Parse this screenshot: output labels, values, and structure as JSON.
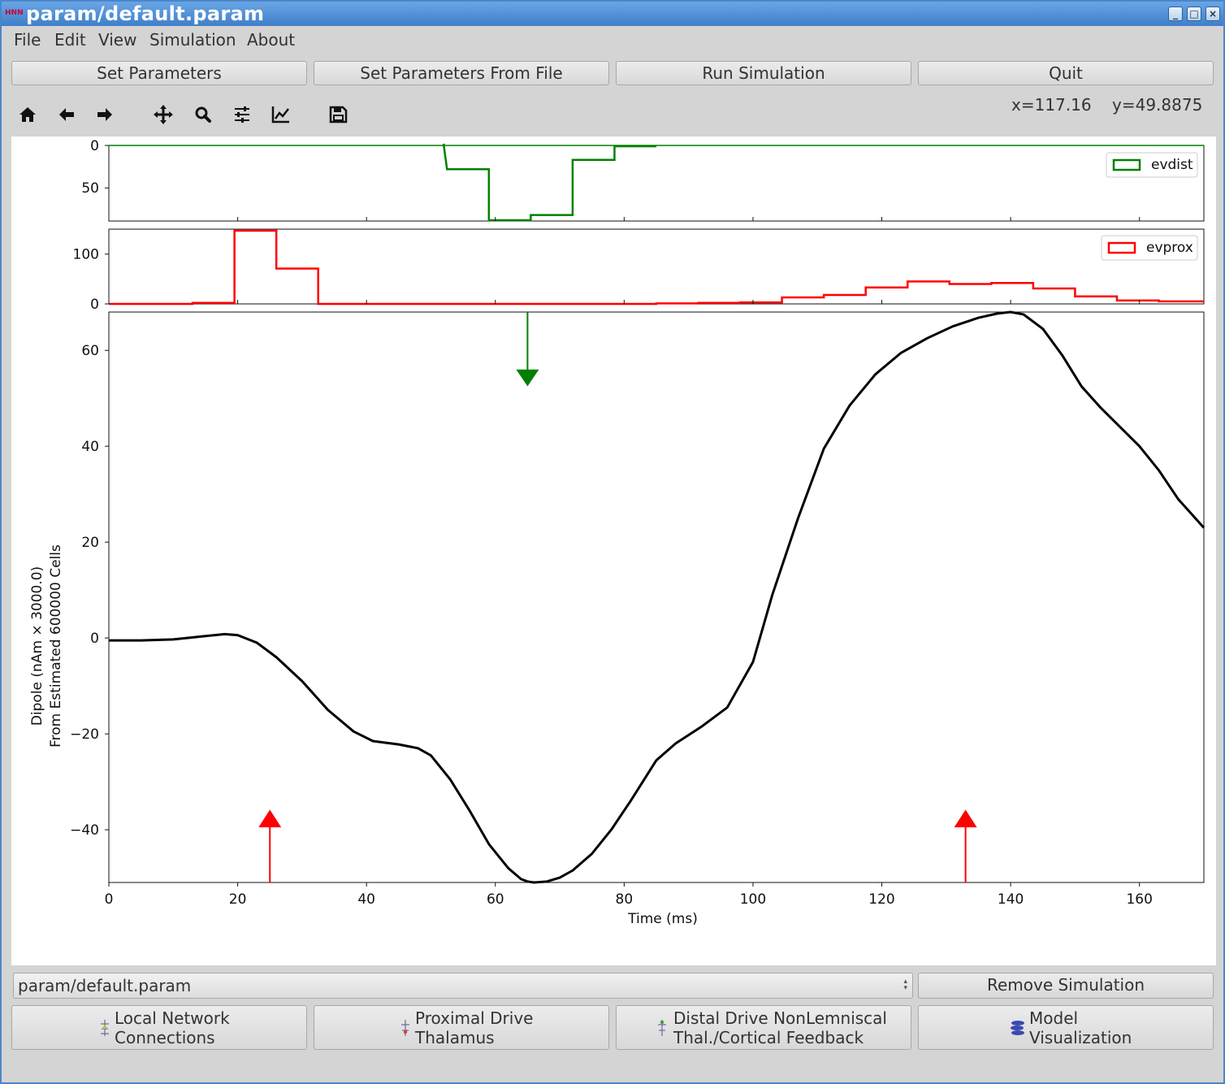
{
  "window": {
    "title": "param/default.param",
    "app_icon_text": "HNN"
  },
  "menu": [
    "File",
    "Edit",
    "View",
    "Simulation",
    "About"
  ],
  "top_buttons": [
    "Set Parameters",
    "Set Parameters From File",
    "Run Simulation",
    "Quit"
  ],
  "toolbar": {
    "icons": [
      "home-icon",
      "back-arrow-icon",
      "forward-arrow-icon",
      "pan-icon",
      "zoom-icon",
      "subplots-icon",
      "edit-axis-icon",
      "save-icon"
    ]
  },
  "cursor_readout": {
    "x": "x=117.16",
    "y": "y=49.8875"
  },
  "chart_data": [
    {
      "type": "histogram",
      "name": "evdist",
      "legend": "evdist",
      "color": "#008000",
      "inverted_y": true,
      "ylim": [
        0,
        89
      ],
      "yticks": [
        "0",
        "50"
      ],
      "bins": [
        [
          52,
          -4
        ],
        [
          52,
          0
        ],
        [
          52.5,
          28
        ],
        [
          59,
          28
        ],
        [
          59,
          88
        ],
        [
          65.5,
          88
        ],
        [
          65.5,
          82
        ],
        [
          72,
          82
        ],
        [
          72,
          17
        ],
        [
          78.5,
          17
        ],
        [
          78.5,
          1
        ],
        [
          85,
          1
        ]
      ],
      "legend_position": "top-right"
    },
    {
      "type": "histogram",
      "name": "evprox",
      "legend": "evprox",
      "color": "#ff0000",
      "ylim": [
        0,
        150
      ],
      "yticks": [
        "100",
        "0"
      ],
      "bins": [
        [
          0,
          0
        ],
        [
          13,
          0
        ],
        [
          13,
          2
        ],
        [
          19.5,
          2
        ],
        [
          19.5,
          147
        ],
        [
          26,
          147
        ],
        [
          26,
          71
        ],
        [
          32.5,
          71
        ],
        [
          32.5,
          0
        ],
        [
          85,
          0
        ],
        [
          85,
          1
        ],
        [
          91.5,
          1
        ],
        [
          91.5,
          2
        ],
        [
          98,
          2
        ],
        [
          98,
          3
        ],
        [
          104.5,
          3
        ],
        [
          104.5,
          13
        ],
        [
          111,
          13
        ],
        [
          111,
          18
        ],
        [
          117.5,
          18
        ],
        [
          117.5,
          33
        ],
        [
          124,
          33
        ],
        [
          124,
          45
        ],
        [
          130.5,
          45
        ],
        [
          130.5,
          40
        ],
        [
          137,
          40
        ],
        [
          137,
          42
        ],
        [
          143.5,
          42
        ],
        [
          143.5,
          31
        ],
        [
          150,
          31
        ],
        [
          150,
          15
        ],
        [
          156.5,
          15
        ],
        [
          156.5,
          7
        ],
        [
          163,
          7
        ],
        [
          163,
          5
        ],
        [
          170,
          5
        ]
      ],
      "legend_position": "top-right"
    },
    {
      "type": "line",
      "xlabel": "Time (ms)",
      "ylabel": [
        "Dipole (nAm × 3000.0)",
        "From Estimated 600000 Cells"
      ],
      "xlim": [
        0,
        170
      ],
      "ylim": [
        -51,
        68
      ],
      "xticks": [
        "0",
        "20",
        "40",
        "60",
        "80",
        "100",
        "120",
        "140",
        "160"
      ],
      "yticks": [
        "60",
        "40",
        "20",
        "0",
        "−20",
        "−40"
      ],
      "series": [
        {
          "color": "#000000",
          "points": [
            [
              0,
              -0.5
            ],
            [
              5,
              -0.5
            ],
            [
              10,
              -0.3
            ],
            [
              15,
              0.4
            ],
            [
              18,
              0.8
            ],
            [
              20,
              0.6
            ],
            [
              23,
              -1
            ],
            [
              26,
              -4
            ],
            [
              30,
              -9
            ],
            [
              34,
              -15
            ],
            [
              38,
              -19.5
            ],
            [
              41,
              -21.5
            ],
            [
              45,
              -22.2
            ],
            [
              48,
              -23
            ],
            [
              50,
              -24.5
            ],
            [
              53,
              -29.5
            ],
            [
              56,
              -36
            ],
            [
              59,
              -43
            ],
            [
              62,
              -48
            ],
            [
              64,
              -50.3
            ],
            [
              65,
              -50.8
            ],
            [
              66,
              -51
            ],
            [
              68,
              -50.8
            ],
            [
              70,
              -50
            ],
            [
              72,
              -48.5
            ],
            [
              75,
              -45
            ],
            [
              78,
              -40
            ],
            [
              81,
              -34
            ],
            [
              85,
              -25.5
            ],
            [
              88,
              -22
            ],
            [
              92,
              -18.5
            ],
            [
              96,
              -14.5
            ],
            [
              100,
              -5
            ],
            [
              103,
              9
            ],
            [
              107,
              25
            ],
            [
              111,
              39.5
            ],
            [
              115,
              48.5
            ],
            [
              119,
              55
            ],
            [
              123,
              59.5
            ],
            [
              127,
              62.5
            ],
            [
              131,
              65
            ],
            [
              135,
              66.8
            ],
            [
              138,
              67.7
            ],
            [
              140,
              68
            ],
            [
              142,
              67.5
            ],
            [
              145,
              64.5
            ],
            [
              148,
              59
            ],
            [
              151,
              52.5
            ],
            [
              154,
              48
            ],
            [
              157,
              44
            ],
            [
              160,
              40
            ],
            [
              163,
              35
            ],
            [
              166,
              29
            ],
            [
              170,
              23
            ]
          ]
        }
      ],
      "arrows": [
        {
          "color": "#008000",
          "x": 65,
          "direction": "down"
        },
        {
          "color": "#ff0000",
          "x": 25,
          "direction": "up"
        },
        {
          "color": "#ff0000",
          "x": 133,
          "direction": "up"
        }
      ]
    }
  ],
  "simulation_select": {
    "value": "param/default.param"
  },
  "remove_button": "Remove Simulation",
  "bottom_buttons": [
    {
      "line1": "Local Network",
      "line2": "Connections"
    },
    {
      "line1": "Proximal Drive",
      "line2": "Thalamus"
    },
    {
      "line1": "Distal Drive NonLemniscal",
      "line2": "Thal./Cortical Feedback"
    },
    {
      "line1": "Model",
      "line2": "Visualization"
    }
  ]
}
